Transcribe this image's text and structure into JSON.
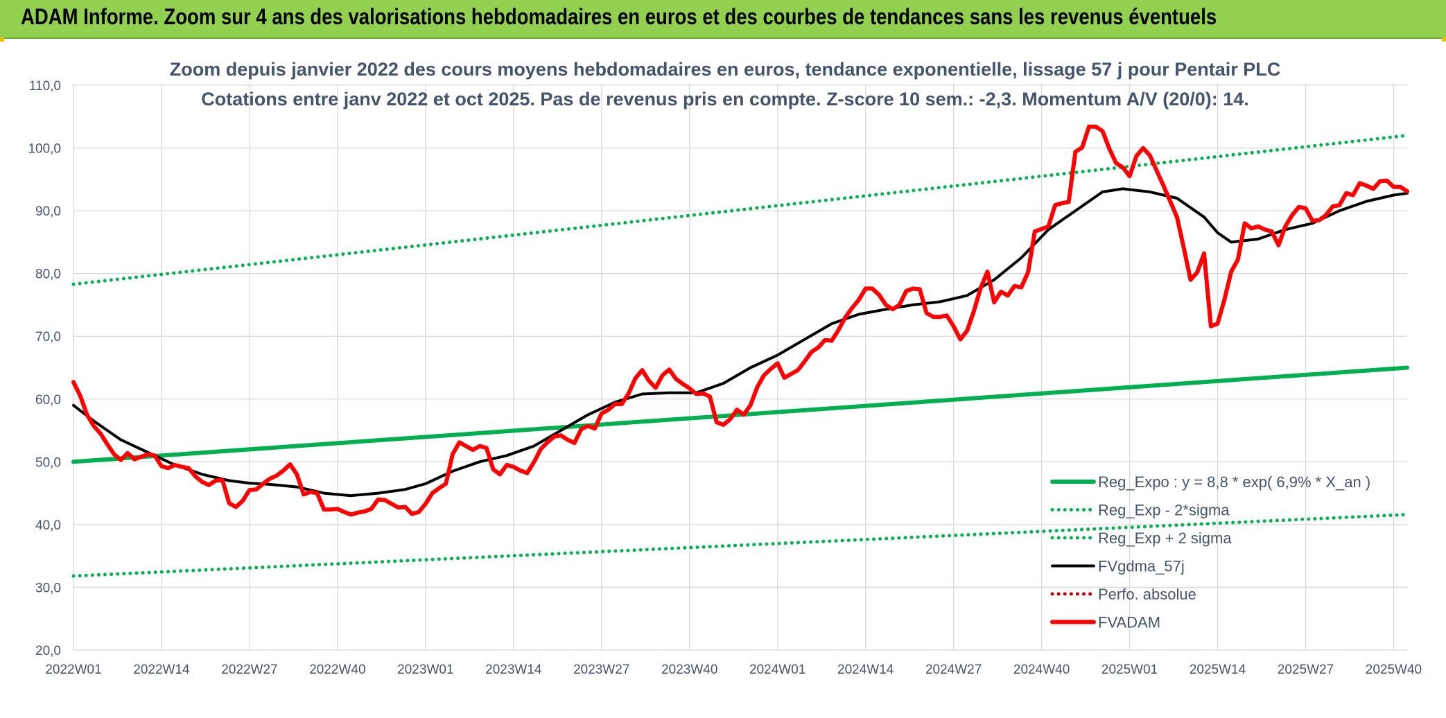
{
  "banner": {
    "title": "ADAM Informe. Zoom sur 4 ans des valorisations hebdomadaires en euros et des courbes de tendances sans les revenus éventuels"
  },
  "colors": {
    "banner_bg": "#92d050",
    "reg_expo": "#00b050",
    "fvgdma": "#000000",
    "fvadam": "#ff0000",
    "perfo": "#c00000",
    "axis_text": "#44546a",
    "grid": "#d9d9d9"
  },
  "chart_data": {
    "type": "line",
    "title": [
      "Zoom depuis janvier 2022 des cours moyens hebdomadaires en euros, tendance exponentielle, lissage 57 j pour Pentair PLC",
      "Cotations entre janv 2022 et oct 2025. Pas de revenus pris en compte. Z-score 10 sem.: -2,3. Momentum A/V (20/0): 14."
    ],
    "ylim": [
      20,
      110
    ],
    "yticks": [
      "20,0",
      "30,0",
      "40,0",
      "50,0",
      "60,0",
      "70,0",
      "80,0",
      "90,0",
      "100,0",
      "110,0"
    ],
    "xlim": [
      1,
      198
    ],
    "xticks": [
      {
        "week": 1,
        "label": "2022W01"
      },
      {
        "week": 14,
        "label": "2022W14"
      },
      {
        "week": 27,
        "label": "2022W27"
      },
      {
        "week": 40,
        "label": "2022W40"
      },
      {
        "week": 53,
        "label": "2023W01"
      },
      {
        "week": 66,
        "label": "2023W14"
      },
      {
        "week": 79,
        "label": "2023W27"
      },
      {
        "week": 92,
        "label": "2023W40"
      },
      {
        "week": 105,
        "label": "2024W01"
      },
      {
        "week": 118,
        "label": "2024W14"
      },
      {
        "week": 131,
        "label": "2024W27"
      },
      {
        "week": 144,
        "label": "2024W40"
      },
      {
        "week": 157,
        "label": "2025W01"
      },
      {
        "week": 170,
        "label": "2025W14"
      },
      {
        "week": 183,
        "label": "2025W27"
      },
      {
        "week": 196,
        "label": "2025W40"
      }
    ],
    "grid": true,
    "legend_position": "bottom-right",
    "series": [
      {
        "name": "Reg_Expo : y = 8,8 * exp( 6,9% *  X_an )",
        "style": "solid-thick",
        "color": "#00b050",
        "x": [
          1,
          198
        ],
        "values": [
          50.0,
          65.0
        ]
      },
      {
        "name": "Reg_Exp - 2*sigma",
        "style": "dotted",
        "color": "#00b050",
        "x": [
          1,
          198
        ],
        "values": [
          31.8,
          41.6
        ]
      },
      {
        "name": "Reg_Exp + 2 sigma",
        "style": "dotted",
        "color": "#00b050",
        "x": [
          1,
          198
        ],
        "values": [
          78.3,
          102.0
        ]
      },
      {
        "name": "FVgdma_57j",
        "style": "solid",
        "color": "#000000",
        "x": [
          1,
          4,
          8,
          12,
          16,
          20,
          24,
          27,
          30,
          34,
          38,
          42,
          46,
          50,
          53,
          57,
          61,
          65,
          69,
          73,
          77,
          81,
          85,
          89,
          93,
          97,
          101,
          105,
          109,
          113,
          117,
          121,
          125,
          129,
          133,
          137,
          141,
          145,
          149,
          153,
          156,
          160,
          164,
          168,
          170,
          172,
          176,
          180,
          184,
          188,
          192,
          196,
          198
        ],
        "values": [
          59.0,
          56.5,
          53.5,
          51.5,
          49.5,
          48.0,
          47.0,
          46.6,
          46.4,
          46.0,
          45.0,
          44.6,
          45.0,
          45.6,
          46.5,
          48.5,
          50.0,
          51.0,
          52.5,
          55.0,
          57.5,
          59.5,
          60.8,
          61.0,
          61.0,
          62.5,
          65.0,
          67.0,
          69.5,
          72.0,
          73.5,
          74.3,
          75.0,
          75.5,
          76.5,
          79.0,
          82.5,
          87.0,
          90.0,
          93.0,
          93.5,
          93.0,
          92.0,
          89.0,
          86.5,
          85.0,
          85.5,
          87.0,
          88.0,
          90.0,
          91.5,
          92.5,
          92.8
        ]
      },
      {
        "name": "Perfo. absolue",
        "style": "dotted",
        "color": "#c00000",
        "x": [],
        "values": []
      },
      {
        "name": "FVADAM",
        "style": "solid-thick",
        "color": "#ff0000",
        "x": [
          1,
          2,
          3,
          4,
          5,
          6,
          7,
          8,
          9,
          10,
          11,
          12,
          13,
          14,
          15,
          16,
          17,
          18,
          19,
          20,
          21,
          22,
          23,
          24,
          25,
          26,
          27,
          28,
          29,
          30,
          31,
          32,
          33,
          34,
          35,
          36,
          37,
          38,
          39,
          40,
          41,
          42,
          43,
          44,
          45,
          46,
          47,
          48,
          49,
          50,
          51,
          52,
          53,
          54,
          55,
          56,
          57,
          58,
          59,
          60,
          61,
          62,
          63,
          64,
          65,
          66,
          67,
          68,
          69,
          70,
          71,
          72,
          73,
          74,
          75,
          76,
          77,
          78,
          79,
          80,
          81,
          82,
          83,
          84,
          85,
          86,
          87,
          88,
          89,
          90,
          91,
          92,
          93,
          94,
          95,
          96,
          97,
          98,
          99,
          100,
          101,
          102,
          103,
          104,
          105,
          106,
          107,
          108,
          109,
          110,
          111,
          112,
          113,
          114,
          115,
          116,
          117,
          118,
          119,
          120,
          121,
          122,
          123,
          124,
          125,
          126,
          127,
          128,
          129,
          130,
          131,
          132,
          133,
          134,
          135,
          136,
          137,
          138,
          139,
          140,
          141,
          142,
          143,
          144,
          145,
          146,
          147,
          148,
          149,
          150,
          151,
          152,
          153,
          154,
          155,
          156,
          157,
          158,
          159,
          160,
          161,
          162,
          163,
          164,
          165,
          166,
          167,
          168,
          169,
          170,
          171,
          172,
          173,
          174,
          175,
          176,
          177,
          178,
          179,
          180,
          181,
          182,
          183,
          184,
          185,
          186,
          187,
          188,
          189,
          190,
          191,
          192,
          193,
          194,
          195,
          196,
          197,
          198
        ],
        "values": [
          62.7,
          60.5,
          57.5,
          55.7,
          54.5,
          52.8,
          51.2,
          50.3,
          51.4,
          50.4,
          50.8,
          51.2,
          51.0,
          49.3,
          49.0,
          49.5,
          49.2,
          49.0,
          47.7,
          46.8,
          46.3,
          47.0,
          47.1,
          43.4,
          42.8,
          43.8,
          45.5,
          45.6,
          46.5,
          47.3,
          47.8,
          48.6,
          49.6,
          48.0,
          44.8,
          45.2,
          45.0,
          42.4,
          42.4,
          42.5,
          42.0,
          41.6,
          41.9,
          42.1,
          42.5,
          44.0,
          43.9,
          43.3,
          42.7,
          42.8,
          41.7,
          42.0,
          43.3,
          45.0,
          45.8,
          46.5,
          51.2,
          53.1,
          52.5,
          51.9,
          52.5,
          52.2,
          48.8,
          48.0,
          49.5,
          49.2,
          48.6,
          48.2,
          49.9,
          52.0,
          53.1,
          54.0,
          54.2,
          53.5,
          53.0,
          55.2,
          55.7,
          55.3,
          57.7,
          58.3,
          59.2,
          59.2,
          60.9,
          63.3,
          64.6,
          62.9,
          61.8,
          63.8,
          64.7,
          63.2,
          62.4,
          61.7,
          60.8,
          60.9,
          60.4,
          56.3,
          55.9,
          56.8,
          58.3,
          57.5,
          59.0,
          61.9,
          63.8,
          64.8,
          65.7,
          63.4,
          64.0,
          64.6,
          66.0,
          67.5,
          68.2,
          69.4,
          69.3,
          71.0,
          73.0,
          74.5,
          75.8,
          77.6,
          77.6,
          76.6,
          75.0,
          74.3,
          75.0,
          77.2,
          77.6,
          77.5,
          73.7,
          73.1,
          73.1,
          73.3,
          71.6,
          69.5,
          70.9,
          74.0,
          77.7,
          80.3,
          75.4,
          77.1,
          76.5,
          78.0,
          77.8,
          80.2,
          86.7,
          87.1,
          87.5,
          90.9,
          91.2,
          91.4,
          99.4,
          100.1,
          103.4,
          103.4,
          102.7,
          99.9,
          97.6,
          96.9,
          95.5,
          98.7,
          100.0,
          98.8,
          96.4,
          94.0,
          91.5,
          89.0,
          84.1,
          79.0,
          80.2,
          83.2,
          71.6,
          72.0,
          75.8,
          80.3,
          82.2,
          88.0,
          87.2,
          87.5,
          87.0,
          86.7,
          84.5,
          87.5,
          89.3,
          90.6,
          90.4,
          88.4,
          88.5,
          89.3,
          90.7,
          90.9,
          92.8,
          92.5,
          94.4,
          94.0,
          93.5,
          94.7,
          94.8,
          93.8,
          93.8,
          93.1
        ]
      }
    ]
  }
}
